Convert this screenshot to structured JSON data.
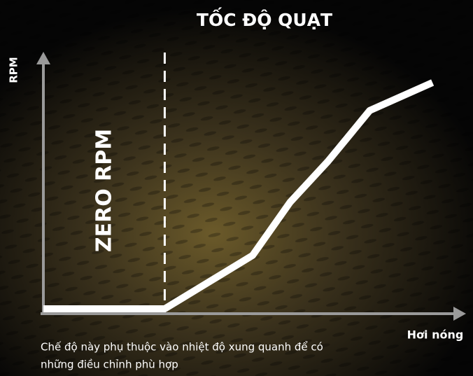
{
  "chart_data": {
    "type": "line",
    "title": "TỐC ĐỘ QUẠT",
    "y_label": "RPM",
    "x_label": "Hơi nóng",
    "x": [
      0,
      29,
      50,
      59,
      68,
      78,
      93
    ],
    "series": [
      {
        "color": "#ffffff",
        "values": [
          0,
          0,
          21,
          42,
          58,
          78,
          89
        ]
      }
    ],
    "xlim": [
      0,
      100
    ],
    "ylim": [
      0,
      100
    ],
    "annotations": [
      {
        "x": 29,
        "text": "ZERO RPM"
      }
    ],
    "caption": [
      "Chế độ này phụ thuộc vào nhiệt độ xung quanh để có",
      "những điều chỉnh phù hợp"
    ]
  }
}
